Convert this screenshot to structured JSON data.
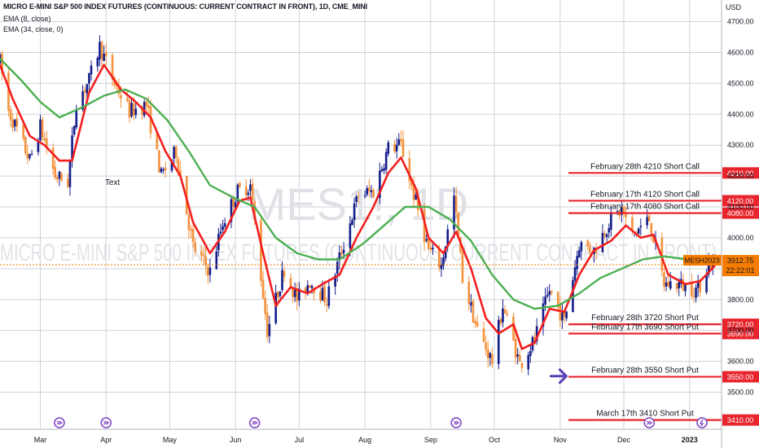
{
  "header": {
    "title": "MICRO E-MINI S&P 500 INDEX FUTURES (CONTINUOUS: CURRENT CONTRACT IN FRONT), 1D, CME_MINI",
    "indicator_1": "EMA (8, close)",
    "indicator_2": "EMA (34, close, 0)"
  },
  "watermark": {
    "symbol": "MES1!, 1D",
    "name": "MICRO E-MINI S&P 500 INDEX FUTURES (CONTINUOUS: CURRENT CONTRACT IN FRONT)"
  },
  "stray_text": "Text",
  "colors": {
    "up_candle": "#131d8a",
    "down_candle": "#f5913b",
    "ema_fast": "#f21f1f",
    "ema_slow": "#4caf50",
    "level_line": "#e8242d",
    "price_tag": "#f57c00",
    "arrow": "#5a3fb5",
    "event_icon": "#7b3fc4"
  },
  "chart_data": {
    "type": "candlestick",
    "currency_label": "USD",
    "ylim": [
      3380,
      4770
    ],
    "y_ticks": [
      "4700.00",
      "4600.00",
      "4500.00",
      "4400.00",
      "4300.00",
      "4200.00",
      "4100.00",
      "4000.00",
      "3900.00",
      "3800.00",
      "3700.00",
      "3600.00",
      "3500.00"
    ],
    "y_tick_values": [
      4700,
      4600,
      4500,
      4400,
      4300,
      4200,
      4100,
      4000,
      3900,
      3800,
      3700,
      3600,
      3500
    ],
    "x_ticks": [
      {
        "label": "Mar",
        "date": "2022-03-01"
      },
      {
        "label": "Apr",
        "date": "2022-04-01"
      },
      {
        "label": "May",
        "date": "2022-05-01"
      },
      {
        "label": "Jun",
        "date": "2022-06-01"
      },
      {
        "label": "Jul",
        "date": "2022-07-01"
      },
      {
        "label": "Aug",
        "date": "2022-08-01"
      },
      {
        "label": "Sep",
        "date": "2022-09-01"
      },
      {
        "label": "Oct",
        "date": "2022-10-01"
      },
      {
        "label": "Nov",
        "date": "2022-11-01"
      },
      {
        "label": "Dec",
        "date": "2022-12-01"
      },
      {
        "label": "2023",
        "date": "2023-01-01"
      }
    ],
    "date_range": [
      "2022-02-10",
      "2023-01-13"
    ],
    "price_path": [
      [
        "2022-02-10",
        4570
      ],
      [
        "2022-02-14",
        4410
      ],
      [
        "2022-02-18",
        4350
      ],
      [
        "2022-02-24",
        4250
      ],
      [
        "2022-03-01",
        4360
      ],
      [
        "2022-03-08",
        4200
      ],
      [
        "2022-03-14",
        4180
      ],
      [
        "2022-03-18",
        4440
      ],
      [
        "2022-03-24",
        4510
      ],
      [
        "2022-03-29",
        4620
      ],
      [
        "2022-04-05",
        4500
      ],
      [
        "2022-04-12",
        4410
      ],
      [
        "2022-04-20",
        4430
      ],
      [
        "2022-04-27",
        4200
      ],
      [
        "2022-05-04",
        4280
      ],
      [
        "2022-05-12",
        3970
      ],
      [
        "2022-05-20",
        3890
      ],
      [
        "2022-05-26",
        4050
      ],
      [
        "2022-06-02",
        4150
      ],
      [
        "2022-06-08",
        4170
      ],
      [
        "2022-06-16",
        3700
      ],
      [
        "2022-06-24",
        3900
      ],
      [
        "2022-06-30",
        3800
      ],
      [
        "2022-07-06",
        3860
      ],
      [
        "2022-07-14",
        3800
      ],
      [
        "2022-07-22",
        3980
      ],
      [
        "2022-07-29",
        4140
      ],
      [
        "2022-08-05",
        4150
      ],
      [
        "2022-08-12",
        4290
      ],
      [
        "2022-08-18",
        4300
      ],
      [
        "2022-08-24",
        4140
      ],
      [
        "2022-08-31",
        3960
      ],
      [
        "2022-09-06",
        3910
      ],
      [
        "2022-09-12",
        4130
      ],
      [
        "2022-09-16",
        3870
      ],
      [
        "2022-09-23",
        3700
      ],
      [
        "2022-09-30",
        3600
      ],
      [
        "2022-10-05",
        3780
      ],
      [
        "2022-10-13",
        3590
      ],
      [
        "2022-10-20",
        3670
      ],
      [
        "2022-10-27",
        3830
      ],
      [
        "2022-11-03",
        3730
      ],
      [
        "2022-11-10",
        3980
      ],
      [
        "2022-11-17",
        3960
      ],
      [
        "2022-11-24",
        4050
      ],
      [
        "2022-11-30",
        4090
      ],
      [
        "2022-12-05",
        4010
      ],
      [
        "2022-12-13",
        4060
      ],
      [
        "2022-12-20",
        3850
      ],
      [
        "2022-12-27",
        3850
      ],
      [
        "2023-01-05",
        3830
      ],
      [
        "2023-01-10",
        3920
      ],
      [
        "2023-01-13",
        3912.75
      ]
    ],
    "series": [
      {
        "name": "EMA (8, close)",
        "color": "#f21f1f",
        "points": [
          [
            "2022-02-10",
            4560
          ],
          [
            "2022-02-16",
            4450
          ],
          [
            "2022-02-24",
            4330
          ],
          [
            "2022-03-03",
            4300
          ],
          [
            "2022-03-10",
            4250
          ],
          [
            "2022-03-16",
            4250
          ],
          [
            "2022-03-24",
            4470
          ],
          [
            "2022-03-31",
            4560
          ],
          [
            "2022-04-08",
            4480
          ],
          [
            "2022-04-15",
            4440
          ],
          [
            "2022-04-22",
            4390
          ],
          [
            "2022-04-29",
            4280
          ],
          [
            "2022-05-06",
            4200
          ],
          [
            "2022-05-12",
            4050
          ],
          [
            "2022-05-20",
            3950
          ],
          [
            "2022-05-27",
            4020
          ],
          [
            "2022-06-03",
            4120
          ],
          [
            "2022-06-08",
            4130
          ],
          [
            "2022-06-14",
            3950
          ],
          [
            "2022-06-20",
            3780
          ],
          [
            "2022-06-27",
            3840
          ],
          [
            "2022-07-05",
            3820
          ],
          [
            "2022-07-12",
            3850
          ],
          [
            "2022-07-20",
            3880
          ],
          [
            "2022-07-28",
            4000
          ],
          [
            "2022-08-05",
            4100
          ],
          [
            "2022-08-12",
            4210
          ],
          [
            "2022-08-18",
            4260
          ],
          [
            "2022-08-25",
            4160
          ],
          [
            "2022-08-31",
            4000
          ],
          [
            "2022-09-07",
            3950
          ],
          [
            "2022-09-13",
            4020
          ],
          [
            "2022-09-20",
            3900
          ],
          [
            "2022-09-27",
            3740
          ],
          [
            "2022-10-03",
            3690
          ],
          [
            "2022-10-10",
            3720
          ],
          [
            "2022-10-14",
            3640
          ],
          [
            "2022-10-20",
            3660
          ],
          [
            "2022-10-27",
            3770
          ],
          [
            "2022-11-03",
            3760
          ],
          [
            "2022-11-10",
            3880
          ],
          [
            "2022-11-17",
            3960
          ],
          [
            "2022-11-25",
            3990
          ],
          [
            "2022-12-02",
            4040
          ],
          [
            "2022-12-09",
            4000
          ],
          [
            "2022-12-15",
            4010
          ],
          [
            "2022-12-22",
            3880
          ],
          [
            "2022-12-30",
            3850
          ],
          [
            "2023-01-06",
            3860
          ],
          [
            "2023-01-13",
            3910
          ]
        ]
      },
      {
        "name": "EMA (34, close, 0)",
        "color": "#4caf50",
        "points": [
          [
            "2022-02-10",
            4580
          ],
          [
            "2022-02-20",
            4510
          ],
          [
            "2022-03-01",
            4440
          ],
          [
            "2022-03-10",
            4390
          ],
          [
            "2022-03-20",
            4420
          ],
          [
            "2022-03-31",
            4460
          ],
          [
            "2022-04-10",
            4480
          ],
          [
            "2022-04-20",
            4450
          ],
          [
            "2022-04-30",
            4380
          ],
          [
            "2022-05-10",
            4280
          ],
          [
            "2022-05-20",
            4170
          ],
          [
            "2022-05-31",
            4130
          ],
          [
            "2022-06-10",
            4100
          ],
          [
            "2022-06-20",
            4000
          ],
          [
            "2022-06-30",
            3950
          ],
          [
            "2022-07-10",
            3930
          ],
          [
            "2022-07-20",
            3930
          ],
          [
            "2022-07-31",
            3980
          ],
          [
            "2022-08-10",
            4040
          ],
          [
            "2022-08-20",
            4100
          ],
          [
            "2022-08-31",
            4100
          ],
          [
            "2022-09-10",
            4060
          ],
          [
            "2022-09-20",
            3990
          ],
          [
            "2022-09-30",
            3880
          ],
          [
            "2022-10-10",
            3800
          ],
          [
            "2022-10-20",
            3770
          ],
          [
            "2022-10-31",
            3780
          ],
          [
            "2022-11-10",
            3820
          ],
          [
            "2022-11-20",
            3870
          ],
          [
            "2022-11-30",
            3900
          ],
          [
            "2022-12-10",
            3930
          ],
          [
            "2022-12-20",
            3940
          ],
          [
            "2022-12-31",
            3930
          ],
          [
            "2023-01-13",
            3920
          ]
        ]
      }
    ],
    "levels": [
      {
        "label": "February 28th 4210 Short Call",
        "price": "4210.00",
        "value": 4210
      },
      {
        "label": "February 17th 4120 Short Call",
        "price": "4120.00",
        "value": 4120
      },
      {
        "label": "February 17th 4080 Short Call",
        "price": "4080.00",
        "value": 4080
      },
      {
        "label": "February 28th 3720 Short Put",
        "price": "3720.00",
        "value": 3720
      },
      {
        "label": "February 17th 3690 Short Put",
        "price": "3690.00",
        "value": 3690
      },
      {
        "label": "February 28th 3550 Short Put",
        "price": "3550.00",
        "value": 3550
      },
      {
        "label": "March 17th 3410 Short Put",
        "price": "3410.00",
        "value": 3410
      }
    ],
    "current": {
      "symbol": "MESH2023",
      "price": "3912.75",
      "countdown": "22:22:01",
      "value": 3912.75
    },
    "arrow_marker": {
      "date": "2022-11-02",
      "value": 3552
    },
    "event_markers": [
      "2022-03-10",
      "2022-04-01",
      "2022-06-10",
      "2022-09-13",
      "2022-12-13"
    ],
    "legend": "top-left"
  }
}
